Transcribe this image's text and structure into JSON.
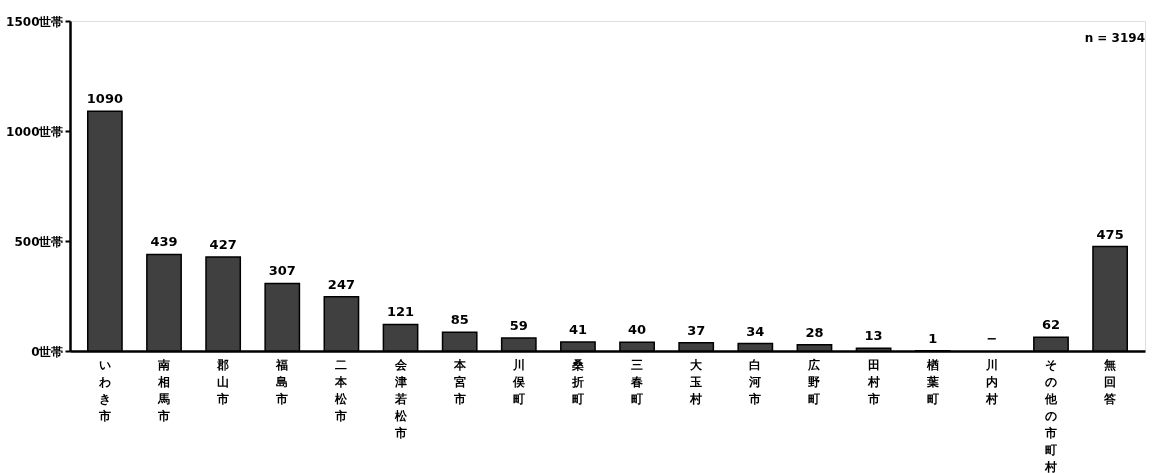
{
  "chart_data": {
    "type": "bar",
    "categories": [
      "いわき市",
      "南相馬市",
      "郡山市",
      "福島市",
      "二本松市",
      "会津若松市",
      "本宮市",
      "川俣町",
      "桑折町",
      "三春町",
      "大玉村",
      "白河市",
      "広野町",
      "田村市",
      "楢葉町",
      "川内村",
      "その他の市町村",
      "無回答"
    ],
    "values": [
      1090,
      439,
      427,
      307,
      247,
      121,
      85,
      59,
      41,
      40,
      37,
      34,
      28,
      13,
      1,
      null,
      62,
      475
    ],
    "value_labels": [
      "1090",
      "439",
      "427",
      "307",
      "247",
      "121",
      "85",
      "59",
      "41",
      "40",
      "37",
      "34",
      "28",
      "13",
      "1",
      "−",
      "62",
      "475"
    ],
    "color": "#404040",
    "ylim": [
      0,
      1500
    ],
    "yticks": [
      {
        "value": 0,
        "label": "0世帯"
      },
      {
        "value": 500,
        "label": "500世帯"
      },
      {
        "value": 1000,
        "label": "1000世帯"
      },
      {
        "value": 1500,
        "label": "1500世帯"
      }
    ],
    "grid": false,
    "annotations": [
      "n = 3194"
    ]
  }
}
